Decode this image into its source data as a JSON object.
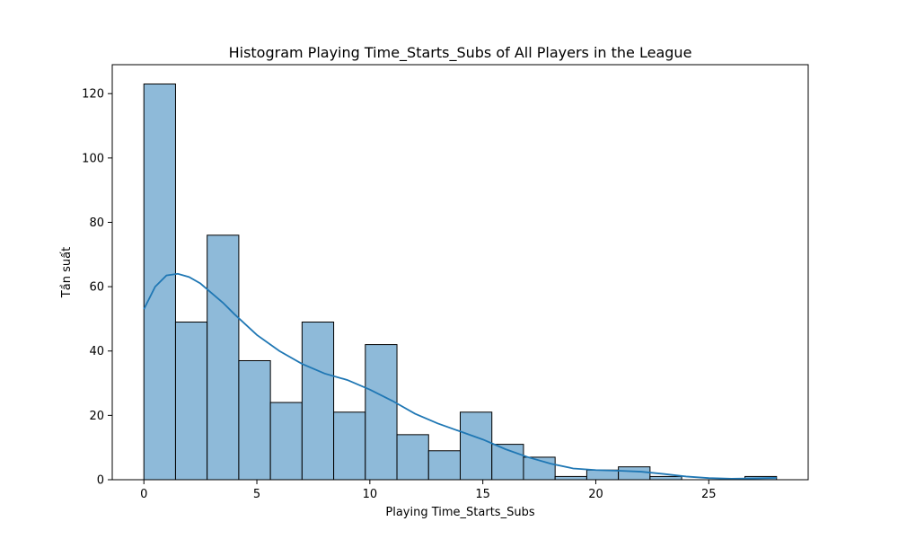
{
  "chart_data": {
    "type": "bar",
    "title": "Histogram Playing Time_Starts_Subs of All Players in the League",
    "xlabel": "Playing Time_Starts_Subs",
    "ylabel": "Tần suất",
    "xlim": [
      -1.4,
      29.4
    ],
    "ylim": [
      0,
      129
    ],
    "x_ticks": [
      0,
      5,
      10,
      15,
      20,
      25
    ],
    "y_ticks": [
      0,
      20,
      40,
      60,
      80,
      100,
      120
    ],
    "bin_edges": [
      0,
      1.4,
      2.8,
      4.2,
      5.6,
      7.0,
      8.4,
      9.8,
      11.2,
      12.6,
      14.0,
      15.4,
      16.8,
      18.2,
      19.6,
      21.0,
      22.4,
      23.8,
      25.2,
      26.6,
      28.0
    ],
    "values": [
      123,
      49,
      76,
      37,
      24,
      49,
      21,
      42,
      14,
      9,
      21,
      11,
      7,
      1,
      3,
      4,
      1,
      0,
      0,
      1
    ],
    "bar_color": "#8ebad9",
    "bar_edge_color": "#000000",
    "kde": {
      "x": [
        0,
        0.5,
        1,
        1.5,
        2,
        2.5,
        3,
        3.5,
        4,
        5,
        6,
        7,
        8,
        9,
        10,
        11,
        12,
        13,
        14,
        15,
        16,
        17,
        18,
        19,
        20,
        21,
        22,
        23,
        24,
        25,
        26,
        27,
        28
      ],
      "y": [
        53,
        60,
        63.5,
        64,
        63,
        61,
        58,
        55,
        51.5,
        45,
        40,
        36,
        33,
        31,
        28,
        24.5,
        20.5,
        17.5,
        15,
        12.5,
        9.5,
        7,
        5,
        3.5,
        3,
        2.8,
        2.5,
        1.8,
        1,
        0.5,
        0.3,
        0.4,
        0.6
      ],
      "color": "#1f77b4"
    },
    "grid": false,
    "legend": "none"
  }
}
